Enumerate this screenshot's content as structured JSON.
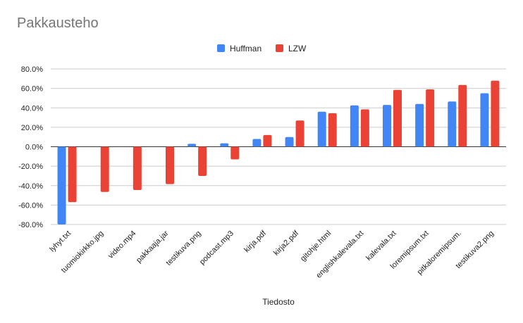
{
  "chart_data": {
    "type": "bar",
    "title": "Pakkausteho",
    "xlabel": "Tiedosto",
    "ylabel": "",
    "ylim": [
      -0.8,
      0.8
    ],
    "yticks": [
      0.8,
      0.6,
      0.4,
      0.2,
      0.0,
      -0.2,
      -0.4,
      -0.6,
      -0.8
    ],
    "ytick_labels": [
      "80.0%",
      "60.0%",
      "40.0%",
      "20.0%",
      "0.0%",
      "-20.0%",
      "-40.0%",
      "-60.0%",
      "-80.0%"
    ],
    "grid": true,
    "legend_position": "top",
    "categories": [
      "lyhyt.txt",
      "tuomiokirkko.jpg",
      "video.mp4",
      "pakkaaja.jar",
      "testikuva.png",
      "podcast.mp3",
      "kirja.pdf",
      "kirja2.pdf",
      "gitohje.html",
      "englishkalevala.txt",
      "kalevala.txt",
      "loremipsum.txt",
      "pitkaloremipsum.",
      "testikuva2.png"
    ],
    "series": [
      {
        "name": "Huffman",
        "color": "#4285f4",
        "values": [
          -0.8,
          0.0,
          0.0,
          0.0,
          0.03,
          0.035,
          0.08,
          0.1,
          0.36,
          0.425,
          0.43,
          0.44,
          0.465,
          0.55
        ]
      },
      {
        "name": "LZW",
        "color": "#ea4335",
        "values": [
          -0.57,
          -0.465,
          -0.445,
          -0.385,
          -0.3,
          -0.13,
          0.12,
          0.27,
          0.345,
          0.385,
          0.585,
          0.59,
          0.635,
          0.68
        ]
      }
    ]
  }
}
